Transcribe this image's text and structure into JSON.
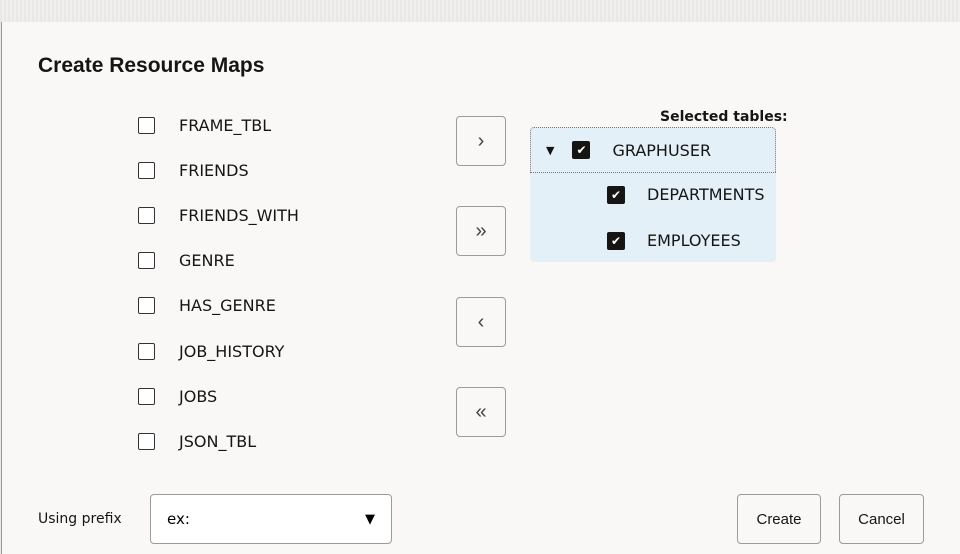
{
  "dialog": {
    "title": "Create Resource Maps"
  },
  "available_tables": [
    "FRAME_TBL",
    "FRIENDS",
    "FRIENDS_WITH",
    "GENRE",
    "HAS_GENRE",
    "JOB_HISTORY",
    "JOBS",
    "JSON_TBL"
  ],
  "shuttle": {
    "move_selected": "›",
    "move_all": "»",
    "remove_selected": "‹",
    "remove_all": "«"
  },
  "selected": {
    "label": "Selected tables:",
    "root": "GRAPHUSER",
    "children": [
      "DEPARTMENTS",
      "EMPLOYEES"
    ]
  },
  "prefix": {
    "label": "Using prefix",
    "value": "ex:"
  },
  "buttons": {
    "create": "Create",
    "cancel": "Cancel"
  }
}
